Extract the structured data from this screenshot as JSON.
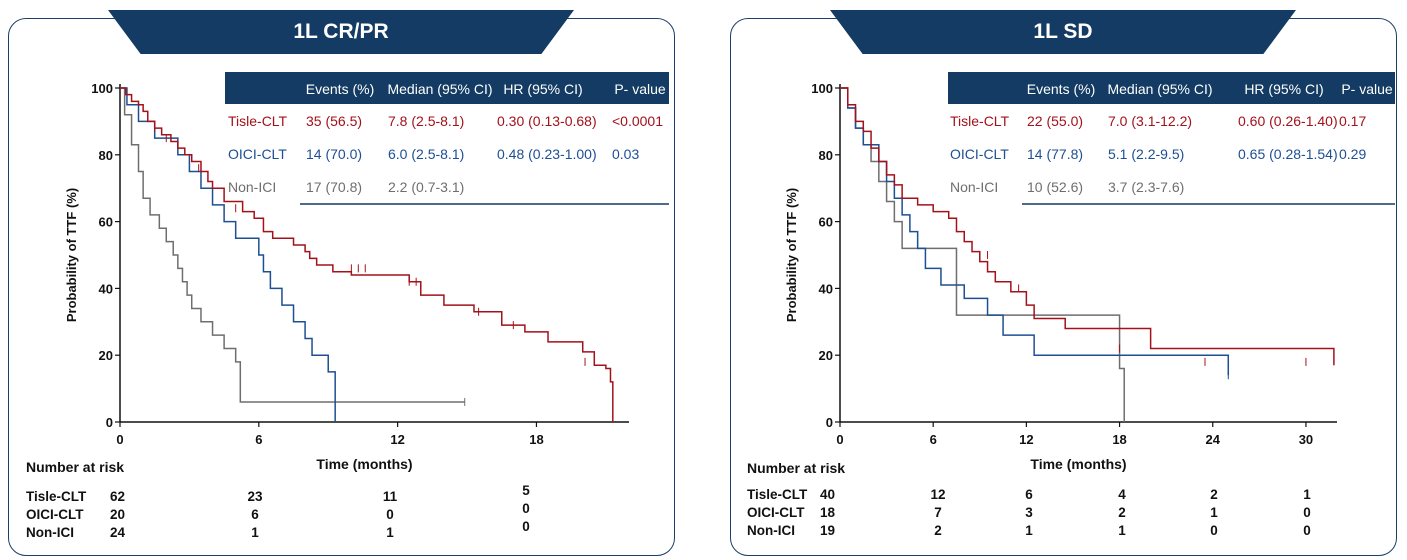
{
  "colors": {
    "navy": "#133b63",
    "tisle": "#a3111a",
    "oici": "#1e4f93",
    "nonici": "#6e6e6e",
    "axis": "#111111"
  },
  "chart_data": [
    {
      "type": "line",
      "title": "1L CR/PR",
      "xlabel": "Time (months)",
      "ylabel": "Probability of TTF (%)",
      "xlim": [
        0,
        22
      ],
      "ylim": [
        0,
        100
      ],
      "x_ticks": [
        "0",
        "6",
        "12",
        "18"
      ],
      "y_ticks": [
        "0",
        "20",
        "40",
        "60",
        "80",
        "100"
      ],
      "table_headers": [
        "Events (%)",
        "Median  (95% CI)",
        "HR (95% CI)",
        "P- value"
      ],
      "table_rows": [
        {
          "label": "Tisle-CLT",
          "events": "35 (56.5)",
          "median": "7.8 (2.5-8.1)",
          "hr": "0.30 (0.13-0.68)",
          "p": "<0.0001",
          "color": "#a3111a"
        },
        {
          "label": "OICI-CLT",
          "events": "14 (70.0)",
          "median": "6.0 (2.5-8.1)",
          "hr": "0.48 (0.23-1.00)",
          "p": "0.03",
          "color": "#1e4f93"
        },
        {
          "label": "Non-ICI",
          "events": "17 (70.8)",
          "median": "2.2 (0.7-3.1)",
          "hr": "",
          "p": "",
          "color": "#6e6e6e"
        }
      ],
      "series": [
        {
          "name": "Tisle-CLT",
          "color": "#a3111a",
          "x": [
            0,
            0.25,
            0.5,
            0.8,
            1.0,
            1.2,
            1.5,
            1.8,
            2.2,
            2.5,
            2.8,
            3.1,
            3.5,
            3.8,
            4.0,
            4.5,
            5.3,
            5.8,
            6.2,
            6.6,
            7.5,
            8.0,
            8.2,
            8.5,
            9.2,
            10.0,
            12.0,
            12.5,
            13.0,
            14.0,
            14.8,
            15.3,
            16.5,
            17.0,
            17.5,
            18.5,
            19.0,
            20.0,
            20.5,
            21.0,
            21.2,
            21.3
          ],
          "y": [
            100,
            98,
            96,
            95,
            93,
            90,
            88,
            86,
            84,
            82,
            80,
            78,
            75,
            72,
            70,
            66,
            63,
            61,
            57,
            55,
            53,
            51,
            49,
            47,
            45,
            44,
            44,
            42,
            38,
            35,
            35,
            33,
            29,
            29,
            27,
            24,
            24,
            21,
            17,
            16,
            12,
            0
          ],
          "censor": [
            [
              1.5,
              88
            ],
            [
              2.0,
              85
            ],
            [
              3.4,
              76
            ],
            [
              5.0,
              64
            ],
            [
              10.0,
              46
            ],
            [
              10.3,
              46
            ],
            [
              10.6,
              46
            ],
            [
              12.5,
              42
            ],
            [
              12.8,
              42
            ],
            [
              15.5,
              33
            ],
            [
              17.0,
              29
            ],
            [
              20.1,
              18
            ]
          ]
        },
        {
          "name": "OICI-CLT",
          "color": "#1e4f93",
          "x": [
            0,
            0.3,
            0.8,
            1.5,
            2.5,
            3.0,
            3.5,
            4.0,
            4.5,
            5.0,
            6.0,
            6.2,
            6.5,
            7.0,
            7.5,
            8.0,
            8.3,
            9.0,
            9.3
          ],
          "y": [
            100,
            95,
            90,
            85,
            80,
            75,
            70,
            65,
            60,
            55,
            50,
            45,
            40,
            35,
            30,
            25,
            20,
            15,
            0
          ],
          "censor": []
        },
        {
          "name": "Non-ICI",
          "color": "#6e6e6e",
          "x": [
            0,
            0.2,
            0.5,
            0.8,
            1.0,
            1.3,
            1.7,
            2.0,
            2.3,
            2.5,
            2.7,
            2.9,
            3.1,
            3.5,
            4.0,
            4.5,
            5.0,
            5.2,
            14.9
          ],
          "y": [
            100,
            92,
            83,
            75,
            67,
            62,
            58,
            54,
            50,
            46,
            42,
            38,
            34,
            30,
            26,
            22,
            18,
            6,
            6
          ],
          "censor": [
            [
              14.9,
              6
            ]
          ]
        }
      ],
      "risk_label": "Number at risk",
      "risk": [
        {
          "label": "Tisle-CLT",
          "values": [
            "62",
            "23",
            "11",
            "5"
          ]
        },
        {
          "label": "OICI-CLT",
          "values": [
            "20",
            "6",
            "0",
            "0"
          ]
        },
        {
          "label": "Non-ICI",
          "values": [
            "24",
            "1",
            "1",
            "0"
          ]
        }
      ]
    },
    {
      "type": "line",
      "title": "1L SD",
      "xlabel": "Time (months)",
      "ylabel": "Probability of TTF (%)",
      "xlim": [
        0,
        32
      ],
      "ylim": [
        0,
        100
      ],
      "x_ticks": [
        "0",
        "6",
        "12",
        "18",
        "24",
        "30"
      ],
      "y_ticks": [
        "0",
        "20",
        "40",
        "60",
        "80",
        "100"
      ],
      "table_headers": [
        "Events (%)",
        "Median  (95% CI)",
        "HR (95% CI)",
        "P- value"
      ],
      "table_rows": [
        {
          "label": "Tisle-CLT",
          "events": "22 (55.0)",
          "median": "7.0 (3.1-12.2)",
          "hr": "0.60 (0.26-1.40)",
          "p": "0.17",
          "color": "#a3111a"
        },
        {
          "label": "OICI-CLT",
          "events": "14 (77.8)",
          "median": "5.1 (2.2-9.5)",
          "hr": "0.65 (0.28-1.54)",
          "p": "0.29",
          "color": "#1e4f93"
        },
        {
          "label": "Non-ICI",
          "events": "10 (52.6)",
          "median": "3.7 (2.3-7.6)",
          "hr": "",
          "p": "",
          "color": "#6e6e6e"
        }
      ],
      "series": [
        {
          "name": "Tisle-CLT",
          "color": "#a3111a",
          "x": [
            0,
            0.5,
            1.0,
            1.5,
            2.0,
            2.5,
            3.0,
            3.5,
            4.0,
            5.0,
            6.0,
            7.0,
            7.5,
            8.0,
            8.5,
            9.0,
            9.5,
            10.0,
            11.0,
            12.0,
            12.5,
            14.5,
            20.0,
            31.8
          ],
          "y": [
            100,
            95,
            90,
            87,
            82,
            78,
            74,
            71,
            67,
            65,
            63,
            61,
            57,
            54,
            51,
            48,
            45,
            42,
            39,
            35,
            31,
            28,
            22,
            17
          ],
          "censor": [
            [
              9.5,
              50
            ],
            [
              11.5,
              40
            ],
            [
              18.0,
              22
            ],
            [
              23.5,
              18
            ],
            [
              30.0,
              18
            ]
          ]
        },
        {
          "name": "OICI-CLT",
          "color": "#1e4f93",
          "x": [
            0,
            0.5,
            1.0,
            1.5,
            2.5,
            3.0,
            3.5,
            4.0,
            4.5,
            5.0,
            5.5,
            6.5,
            7.5,
            8.0,
            9.5,
            10.5,
            12.5,
            25.0
          ],
          "y": [
            100,
            94,
            88,
            83,
            78,
            72,
            67,
            62,
            57,
            52,
            46,
            41,
            41,
            37,
            32,
            26,
            20,
            14
          ],
          "censor": [
            [
              25.0,
              14
            ]
          ]
        },
        {
          "name": "Non-ICI",
          "color": "#6e6e6e",
          "x": [
            0,
            0.5,
            1.0,
            1.5,
            2.0,
            2.5,
            3.0,
            3.5,
            4.0,
            7.5,
            18.0,
            18.3
          ],
          "y": [
            100,
            94,
            88,
            83,
            78,
            72,
            66,
            60,
            52,
            32,
            16,
            0
          ],
          "censor": []
        }
      ],
      "risk_label": "Number at risk",
      "risk": [
        {
          "label": "Tisle-CLT",
          "values": [
            "40",
            "12",
            "6",
            "4",
            "2",
            "1"
          ]
        },
        {
          "label": "OICI-CLT",
          "values": [
            "18",
            "7",
            "3",
            "2",
            "1",
            "0"
          ]
        },
        {
          "label": "Non-ICI",
          "values": [
            "19",
            "2",
            "1",
            "1",
            "0",
            "0"
          ]
        }
      ]
    }
  ]
}
